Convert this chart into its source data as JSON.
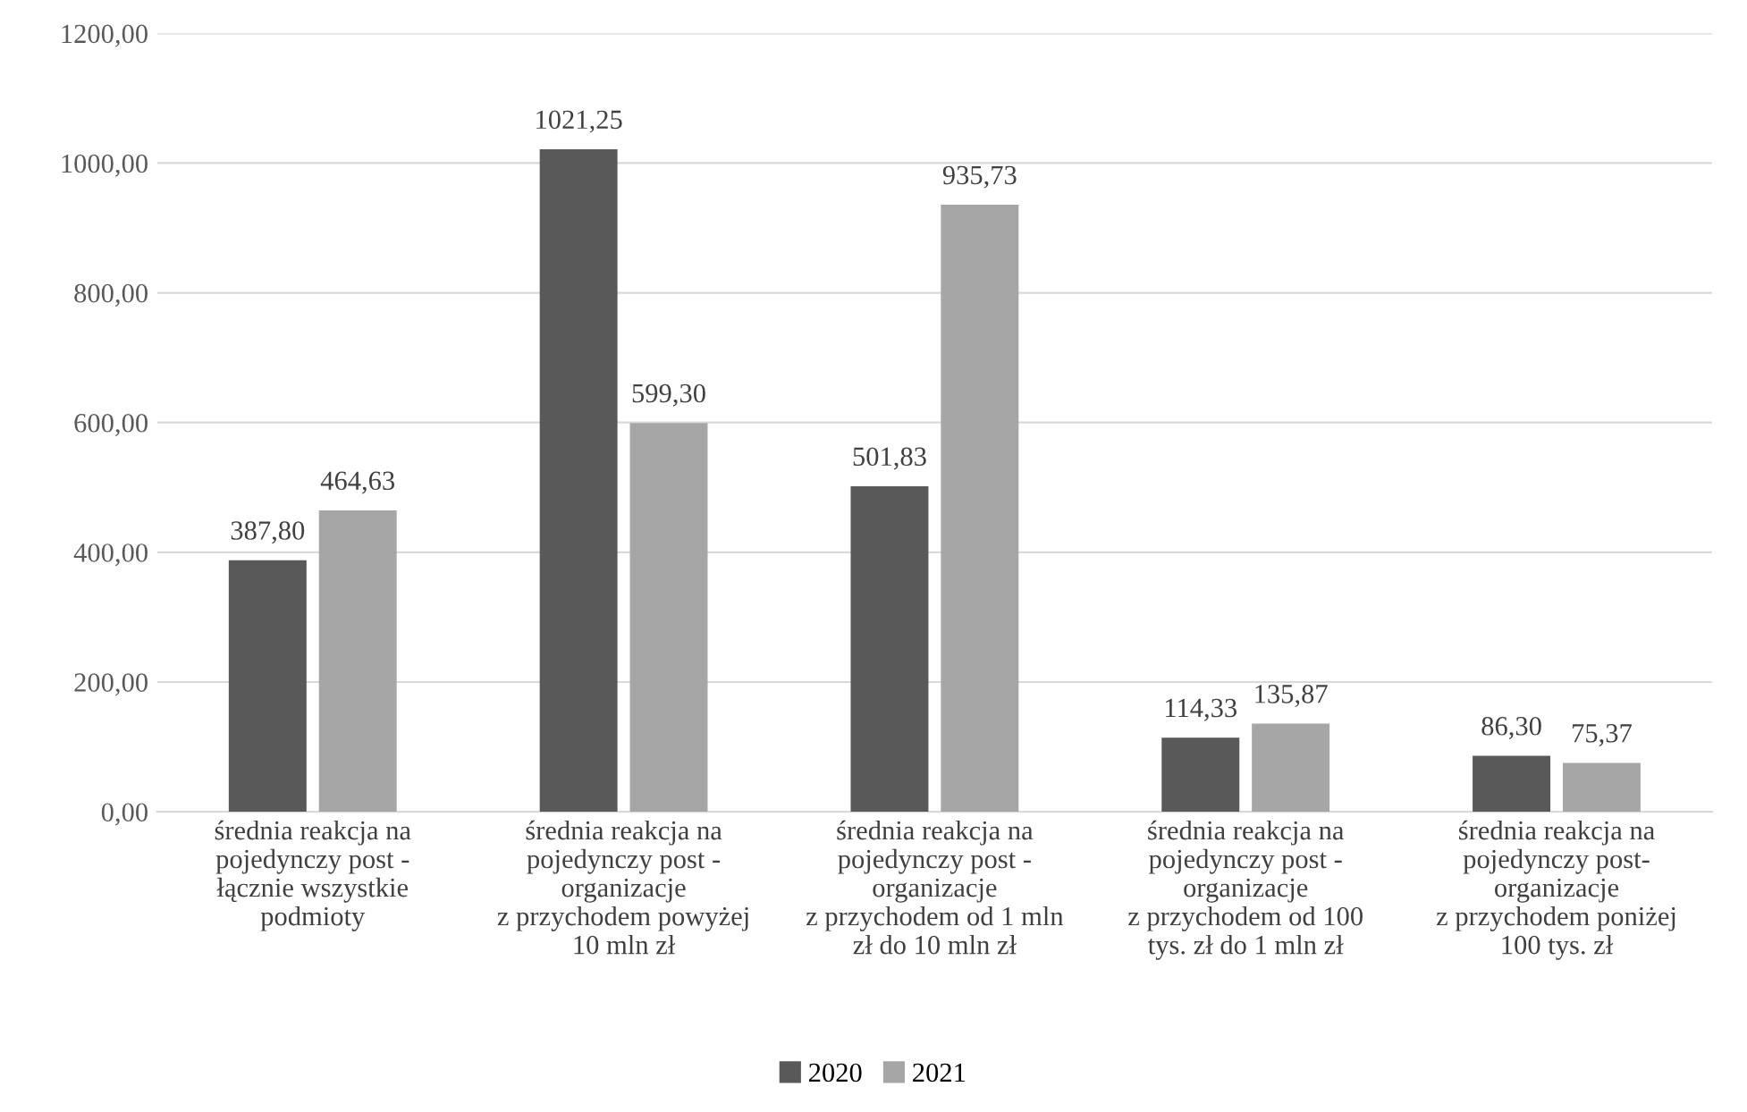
{
  "chart_data": {
    "type": "bar",
    "categories": [
      "średnia reakcja na\npojedynczy post -\nłącznie wszystkie\npodmioty",
      "średnia reakcja na\npojedynczy post -\norganizacje\nz przychodem powyżej\n10 mln zł",
      "średnia reakcja na\npojedynczy post -\norganizacje\nz przychodem od 1 mln\nzł do 10 mln zł",
      "średnia reakcja na\npojedynczy post -\norganizacje\nz przychodem od 100\ntys. zł do 1 mln zł",
      "średnia reakcja na\npojedynczy post-\norganizacje\nz przychodem poniżej\n100 tys. zł"
    ],
    "series": [
      {
        "name": "2020",
        "color": "#595959",
        "values": [
          387.8,
          1021.25,
          501.83,
          114.33,
          86.3
        ],
        "value_labels": [
          "387,80",
          "1021,25",
          "501,83",
          "114,33",
          "86,30"
        ]
      },
      {
        "name": "2021",
        "color": "#a6a6a6",
        "values": [
          464.63,
          599.3,
          935.73,
          135.87,
          75.37
        ],
        "value_labels": [
          "464,63",
          "599,30",
          "935,73",
          "135,87",
          "75,37"
        ]
      }
    ],
    "ylim": [
      0,
      1200
    ],
    "yticks": [
      {
        "value": 0,
        "label": "0,00"
      },
      {
        "value": 200,
        "label": "200,00"
      },
      {
        "value": 400,
        "label": "400,00"
      },
      {
        "value": 600,
        "label": "600,00"
      },
      {
        "value": 800,
        "label": "800,00"
      },
      {
        "value": 1000,
        "label": "1000,00"
      },
      {
        "value": 1200,
        "label": "1200,00"
      }
    ],
    "grid": "y",
    "legend": "bottom"
  }
}
